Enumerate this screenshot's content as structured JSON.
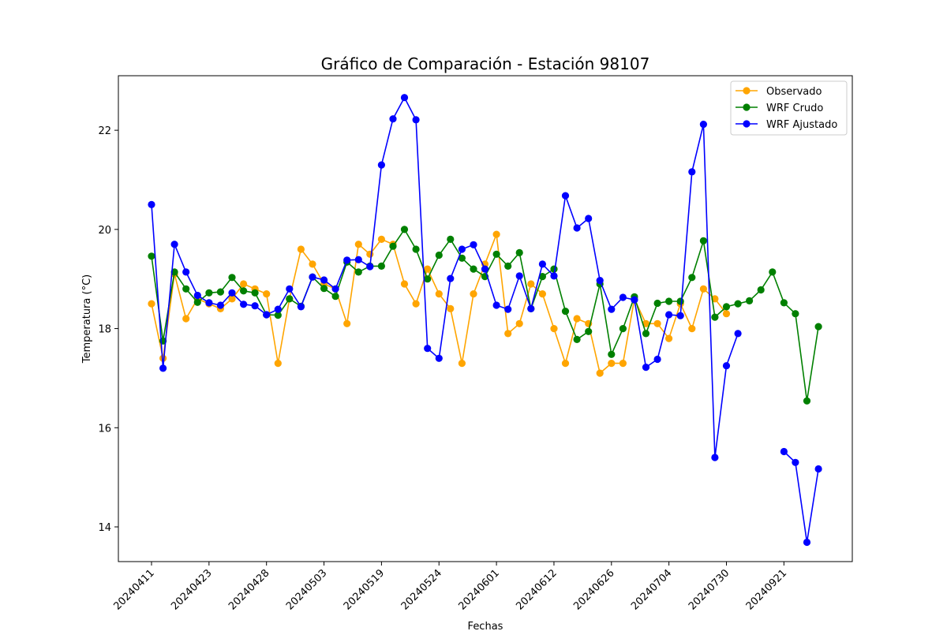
{
  "chart_data": {
    "type": "line",
    "title": "Gráfico de Comparación - Estación 98107",
    "xlabel": "Fechas",
    "ylabel": "Temperatura (°C)",
    "ylim": [
      13.3,
      23.1
    ],
    "yticks": [
      14,
      16,
      18,
      20,
      22
    ],
    "grid": false,
    "legend_position": "top-right",
    "x_tick_labels": [
      "20240411",
      "20240423",
      "20240428",
      "20240503",
      "20240519",
      "20240524",
      "20240601",
      "20240612",
      "20240626",
      "20240704",
      "20240730",
      "20240921"
    ],
    "x_tick_every": 5,
    "n_points": 59,
    "series": [
      {
        "name": "Observado",
        "color": "#ffa500",
        "values": [
          18.5,
          17.4,
          19.1,
          18.2,
          18.6,
          18.5,
          18.4,
          18.6,
          18.9,
          18.8,
          18.7,
          17.3,
          18.6,
          19.6,
          19.3,
          18.9,
          18.8,
          18.1,
          19.7,
          19.5,
          19.8,
          19.7,
          18.9,
          18.5,
          19.2,
          18.7,
          18.4,
          17.3,
          18.7,
          19.3,
          19.9,
          17.9,
          18.1,
          18.9,
          18.7,
          18.0,
          17.3,
          18.2,
          18.1,
          17.1,
          17.3,
          17.3,
          18.6,
          18.1,
          18.1,
          17.8,
          18.5,
          18.0,
          18.8,
          18.6,
          18.3,
          null,
          null,
          null,
          null,
          null,
          null,
          null,
          null
        ]
      },
      {
        "name": "WRF Crudo",
        "color": "#008000",
        "values": [
          19.46,
          17.75,
          19.14,
          18.8,
          18.53,
          18.72,
          18.74,
          19.03,
          18.76,
          18.72,
          18.28,
          18.27,
          18.6,
          18.45,
          19.04,
          18.81,
          18.65,
          19.34,
          19.14,
          19.26,
          19.26,
          19.66,
          20.0,
          19.6,
          19.0,
          19.48,
          19.8,
          19.42,
          19.2,
          19.05,
          19.5,
          19.26,
          19.53,
          18.4,
          19.05,
          19.2,
          18.35,
          17.78,
          17.94,
          18.9,
          17.48,
          18.0,
          18.64,
          17.9,
          18.51,
          18.55,
          18.55,
          19.03,
          19.77,
          18.23,
          18.44,
          18.5,
          18.56,
          18.78,
          19.14,
          18.52,
          18.3,
          16.54,
          18.04
        ]
      },
      {
        "name": "WRF Ajustado",
        "color": "#0000ff",
        "values": [
          20.5,
          17.2,
          19.7,
          19.14,
          18.67,
          18.52,
          18.47,
          18.72,
          18.49,
          18.46,
          18.28,
          18.39,
          18.8,
          18.44,
          19.04,
          18.98,
          18.8,
          19.38,
          19.39,
          19.25,
          21.3,
          22.23,
          22.66,
          22.21,
          17.6,
          17.4,
          19.01,
          19.6,
          19.69,
          19.2,
          18.47,
          18.39,
          19.06,
          18.4,
          19.3,
          19.06,
          20.68,
          20.03,
          20.22,
          18.97,
          18.39,
          18.63,
          18.58,
          17.22,
          17.38,
          18.28,
          18.26,
          21.16,
          22.12,
          15.4,
          17.25,
          17.9,
          null,
          null,
          null,
          15.52,
          15.3,
          13.69,
          15.17
        ]
      }
    ]
  }
}
